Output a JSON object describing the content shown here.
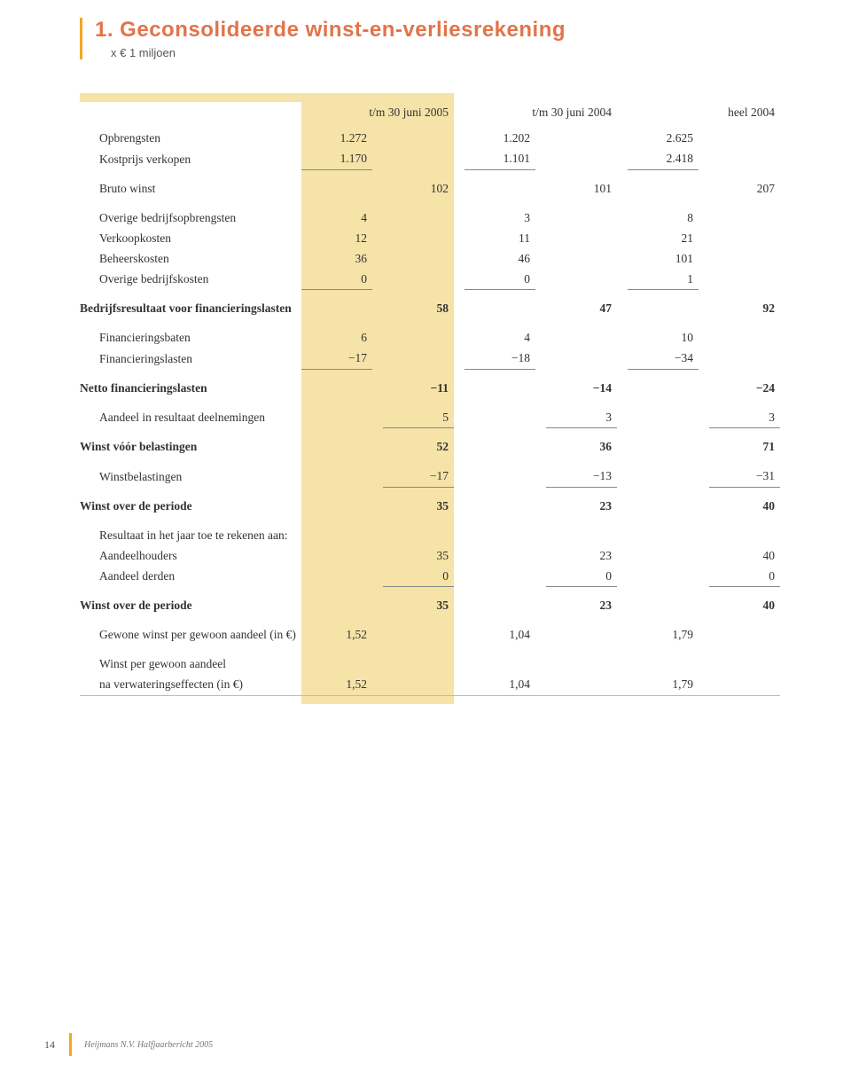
{
  "title": "1. Geconsolideerde winst-en-verliesrekening",
  "subtitle": "x € 1 miljoen",
  "columns": {
    "c2005": "t/m 30 juni 2005",
    "c2004h": "t/m 30 juni 2004",
    "c2004y": "heel 2004"
  },
  "rows": {
    "opbrengsten": {
      "label": "Opbrengsten",
      "a": "1.272",
      "b": "1.202",
      "c": "2.625"
    },
    "kostprijs": {
      "label": "Kostprijs verkopen",
      "a": "1.170",
      "b": "1.101",
      "c": "2.418"
    },
    "brutowinst": {
      "label": "Bruto winst",
      "a": "102",
      "b": "101",
      "c": "207"
    },
    "overigeop": {
      "label": "Overige bedrijfsopbrengsten",
      "a": "4",
      "b": "3",
      "c": "8"
    },
    "verkoopkosten": {
      "label": "Verkoopkosten",
      "a": "12",
      "b": "11",
      "c": "21"
    },
    "beheerskosten": {
      "label": "Beheerskosten",
      "a": "36",
      "b": "46",
      "c": "101"
    },
    "overigebk": {
      "label": "Overige bedrijfskosten",
      "a": "0",
      "b": "0",
      "c": "1"
    },
    "bedrijfsres": {
      "label": "Bedrijfsresultaat voor financieringslasten",
      "a": "58",
      "b": "47",
      "c": "92"
    },
    "finbaten": {
      "label": "Financieringsbaten",
      "a": "6",
      "b": "4",
      "c": "10"
    },
    "finlasten": {
      "label": "Financieringslasten",
      "a": "−17",
      "b": "−18",
      "c": "−34"
    },
    "nettofin": {
      "label": "Netto financieringslasten",
      "a": "−11",
      "b": "−14",
      "c": "−24"
    },
    "aandeelres": {
      "label": "Aandeel in resultaat deelnemingen",
      "a": "5",
      "b": "3",
      "c": "3"
    },
    "winstvoorbel": {
      "label": "Winst vóór belastingen",
      "a": "52",
      "b": "36",
      "c": "71"
    },
    "winstbel": {
      "label": "Winstbelastingen",
      "a": "−17",
      "b": "−13",
      "c": "−31"
    },
    "winstperiode": {
      "label": "Winst over de periode",
      "a": "35",
      "b": "23",
      "c": "40"
    },
    "resjaartoe": {
      "label": "Resultaat in het jaar toe te rekenen aan:"
    },
    "aandeelhouders": {
      "label": "Aandeelhouders",
      "a": "35",
      "b": "23",
      "c": "40"
    },
    "aandeelderden": {
      "label": "Aandeel derden",
      "a": "0",
      "b": "0",
      "c": "0"
    },
    "winstperiode2": {
      "label": "Winst over de periode",
      "a": "35",
      "b": "23",
      "c": "40"
    },
    "gewonewinst": {
      "label": "Gewone winst per gewoon aandeel (in €)",
      "a": "1,52",
      "b": "1,04",
      "c": "1,79"
    },
    "winstpergewoon1": {
      "label": "Winst per gewoon aandeel"
    },
    "winstpergewoon2": {
      "label": "na verwateringseffecten (in €)",
      "a": "1,52",
      "b": "1,04",
      "c": "1,79"
    }
  },
  "footer": {
    "page": "14",
    "text": "Heijmans N.V. Halfjaarbericht 2005"
  },
  "colors": {
    "accent_orange": "#e2744a",
    "bar_orange": "#f5a623",
    "highlight_bg": "#f5e3a8"
  }
}
